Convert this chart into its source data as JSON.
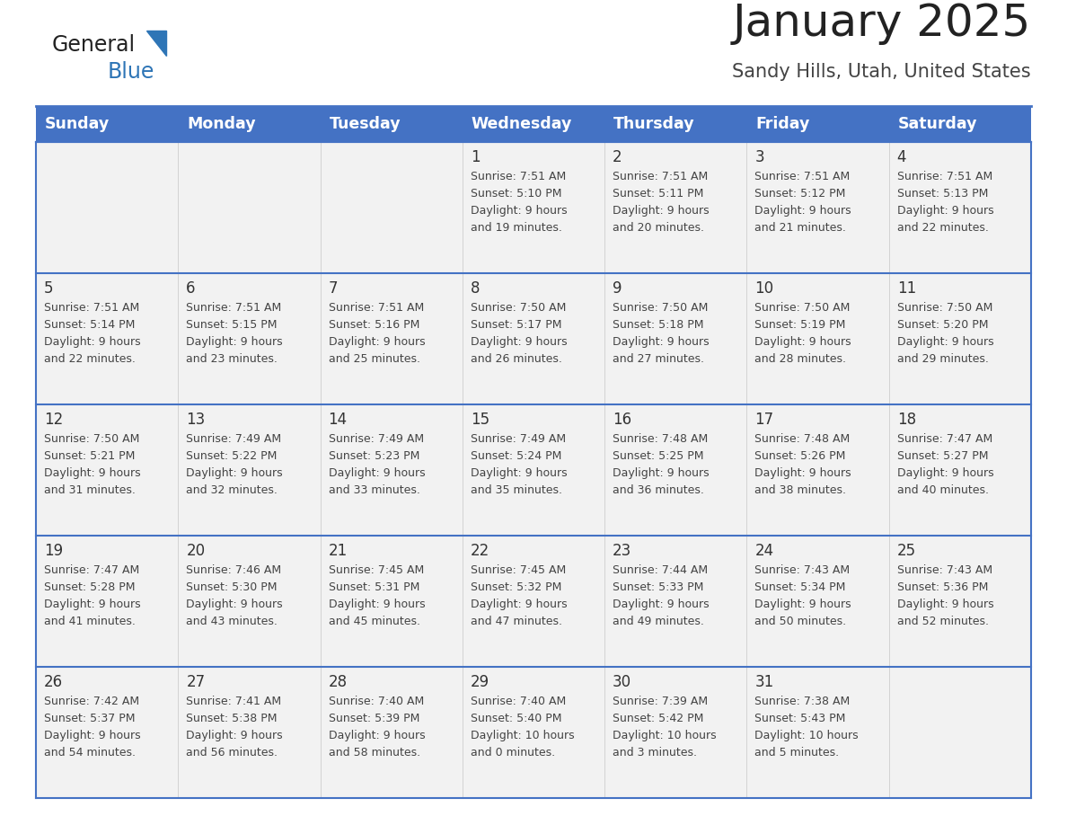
{
  "title": "January 2025",
  "subtitle": "Sandy Hills, Utah, United States",
  "header_color": "#4472C4",
  "header_text_color": "#FFFFFF",
  "day_names": [
    "Sunday",
    "Monday",
    "Tuesday",
    "Wednesday",
    "Thursday",
    "Friday",
    "Saturday"
  ],
  "background_color": "#FFFFFF",
  "cell_bg_color": "#F2F2F2",
  "cell_border_color": "#4472C4",
  "title_color": "#222222",
  "subtitle_color": "#444444",
  "day_num_color": "#333333",
  "cell_text_color": "#444444",
  "logo_general_color": "#222222",
  "logo_blue_color": "#2E75B6",
  "logo_triangle_color": "#2E75B6",
  "days": [
    {
      "day": 1,
      "col": 3,
      "row": 0,
      "sunrise": "7:51 AM",
      "sunset": "5:10 PM",
      "daylight": "9 hours and 19 minutes."
    },
    {
      "day": 2,
      "col": 4,
      "row": 0,
      "sunrise": "7:51 AM",
      "sunset": "5:11 PM",
      "daylight": "9 hours and 20 minutes."
    },
    {
      "day": 3,
      "col": 5,
      "row": 0,
      "sunrise": "7:51 AM",
      "sunset": "5:12 PM",
      "daylight": "9 hours and 21 minutes."
    },
    {
      "day": 4,
      "col": 6,
      "row": 0,
      "sunrise": "7:51 AM",
      "sunset": "5:13 PM",
      "daylight": "9 hours and 22 minutes."
    },
    {
      "day": 5,
      "col": 0,
      "row": 1,
      "sunrise": "7:51 AM",
      "sunset": "5:14 PM",
      "daylight": "9 hours and 22 minutes."
    },
    {
      "day": 6,
      "col": 1,
      "row": 1,
      "sunrise": "7:51 AM",
      "sunset": "5:15 PM",
      "daylight": "9 hours and 23 minutes."
    },
    {
      "day": 7,
      "col": 2,
      "row": 1,
      "sunrise": "7:51 AM",
      "sunset": "5:16 PM",
      "daylight": "9 hours and 25 minutes."
    },
    {
      "day": 8,
      "col": 3,
      "row": 1,
      "sunrise": "7:50 AM",
      "sunset": "5:17 PM",
      "daylight": "9 hours and 26 minutes."
    },
    {
      "day": 9,
      "col": 4,
      "row": 1,
      "sunrise": "7:50 AM",
      "sunset": "5:18 PM",
      "daylight": "9 hours and 27 minutes."
    },
    {
      "day": 10,
      "col": 5,
      "row": 1,
      "sunrise": "7:50 AM",
      "sunset": "5:19 PM",
      "daylight": "9 hours and 28 minutes."
    },
    {
      "day": 11,
      "col": 6,
      "row": 1,
      "sunrise": "7:50 AM",
      "sunset": "5:20 PM",
      "daylight": "9 hours and 29 minutes."
    },
    {
      "day": 12,
      "col": 0,
      "row": 2,
      "sunrise": "7:50 AM",
      "sunset": "5:21 PM",
      "daylight": "9 hours and 31 minutes."
    },
    {
      "day": 13,
      "col": 1,
      "row": 2,
      "sunrise": "7:49 AM",
      "sunset": "5:22 PM",
      "daylight": "9 hours and 32 minutes."
    },
    {
      "day": 14,
      "col": 2,
      "row": 2,
      "sunrise": "7:49 AM",
      "sunset": "5:23 PM",
      "daylight": "9 hours and 33 minutes."
    },
    {
      "day": 15,
      "col": 3,
      "row": 2,
      "sunrise": "7:49 AM",
      "sunset": "5:24 PM",
      "daylight": "9 hours and 35 minutes."
    },
    {
      "day": 16,
      "col": 4,
      "row": 2,
      "sunrise": "7:48 AM",
      "sunset": "5:25 PM",
      "daylight": "9 hours and 36 minutes."
    },
    {
      "day": 17,
      "col": 5,
      "row": 2,
      "sunrise": "7:48 AM",
      "sunset": "5:26 PM",
      "daylight": "9 hours and 38 minutes."
    },
    {
      "day": 18,
      "col": 6,
      "row": 2,
      "sunrise": "7:47 AM",
      "sunset": "5:27 PM",
      "daylight": "9 hours and 40 minutes."
    },
    {
      "day": 19,
      "col": 0,
      "row": 3,
      "sunrise": "7:47 AM",
      "sunset": "5:28 PM",
      "daylight": "9 hours and 41 minutes."
    },
    {
      "day": 20,
      "col": 1,
      "row": 3,
      "sunrise": "7:46 AM",
      "sunset": "5:30 PM",
      "daylight": "9 hours and 43 minutes."
    },
    {
      "day": 21,
      "col": 2,
      "row": 3,
      "sunrise": "7:45 AM",
      "sunset": "5:31 PM",
      "daylight": "9 hours and 45 minutes."
    },
    {
      "day": 22,
      "col": 3,
      "row": 3,
      "sunrise": "7:45 AM",
      "sunset": "5:32 PM",
      "daylight": "9 hours and 47 minutes."
    },
    {
      "day": 23,
      "col": 4,
      "row": 3,
      "sunrise": "7:44 AM",
      "sunset": "5:33 PM",
      "daylight": "9 hours and 49 minutes."
    },
    {
      "day": 24,
      "col": 5,
      "row": 3,
      "sunrise": "7:43 AM",
      "sunset": "5:34 PM",
      "daylight": "9 hours and 50 minutes."
    },
    {
      "day": 25,
      "col": 6,
      "row": 3,
      "sunrise": "7:43 AM",
      "sunset": "5:36 PM",
      "daylight": "9 hours and 52 minutes."
    },
    {
      "day": 26,
      "col": 0,
      "row": 4,
      "sunrise": "7:42 AM",
      "sunset": "5:37 PM",
      "daylight": "9 hours and 54 minutes."
    },
    {
      "day": 27,
      "col": 1,
      "row": 4,
      "sunrise": "7:41 AM",
      "sunset": "5:38 PM",
      "daylight": "9 hours and 56 minutes."
    },
    {
      "day": 28,
      "col": 2,
      "row": 4,
      "sunrise": "7:40 AM",
      "sunset": "5:39 PM",
      "daylight": "9 hours and 58 minutes."
    },
    {
      "day": 29,
      "col": 3,
      "row": 4,
      "sunrise": "7:40 AM",
      "sunset": "5:40 PM",
      "daylight": "10 hours and 0 minutes."
    },
    {
      "day": 30,
      "col": 4,
      "row": 4,
      "sunrise": "7:39 AM",
      "sunset": "5:42 PM",
      "daylight": "10 hours and 3 minutes."
    },
    {
      "day": 31,
      "col": 5,
      "row": 4,
      "sunrise": "7:38 AM",
      "sunset": "5:43 PM",
      "daylight": "10 hours and 5 minutes."
    }
  ]
}
